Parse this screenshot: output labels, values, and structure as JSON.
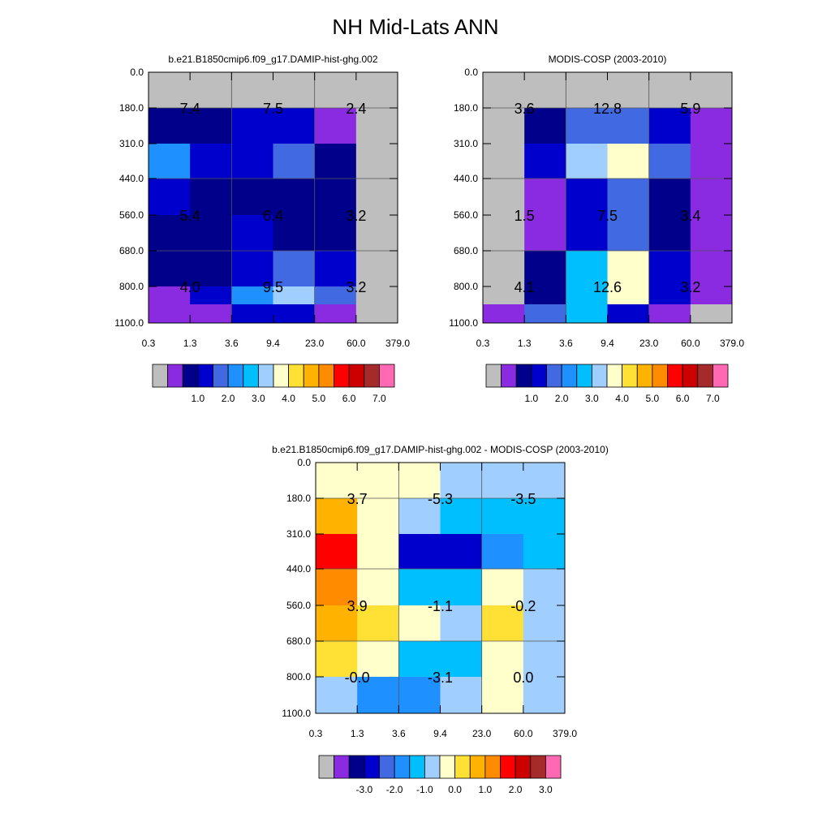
{
  "page_title": "NH Mid-Lats ANN",
  "colors": {
    "missing": "#bebebe",
    "frame": "#000000",
    "grid": "#555555"
  },
  "chart_data": [
    {
      "id": "model",
      "type": "heatmap",
      "title": "b.e21.B1850cmip6.f09_g17.DAMIP-hist-ghg.002",
      "x_ticks": [
        "0.3",
        "1.3",
        "3.6",
        "9.4",
        "23.0",
        "60.0",
        "379.0"
      ],
      "y_ticks": [
        "0.0",
        "180.0",
        "310.0",
        "440.0",
        "560.0",
        "680.0",
        "800.0",
        "1100.0"
      ],
      "xlabel": "",
      "ylabel": "",
      "cells": [
        [
          "missing",
          "missing",
          "missing",
          "missing",
          "missing",
          "missing"
        ],
        [
          "#00008b",
          "#00008b",
          "#0000cd",
          "#0000cd",
          "#8a2be2",
          "missing"
        ],
        [
          "#1e90ff",
          "#0000cd",
          "#0000cd",
          "#4169e1",
          "#00008b",
          "missing"
        ],
        [
          "#0000cd",
          "#00008b",
          "#00008b",
          "#00008b",
          "#00008b",
          "missing"
        ],
        [
          "#00008b",
          "#00008b",
          "#0000cd",
          "#00008b",
          "#00008b",
          "missing"
        ],
        [
          "#00008b",
          "#00008b",
          "#0000cd",
          "#4169e1",
          "#0000cd",
          "missing"
        ],
        [
          "#8a2be2",
          "#0000cd",
          "#1e90ff",
          "#a0cfff",
          "#4169e1",
          "missing"
        ],
        [
          "#8a2be2",
          "#8a2be2",
          "#0000cd",
          "#0000cd",
          "#8a2be2",
          "missing"
        ]
      ],
      "annotations": [
        {
          "x_block": 0,
          "y_block": 0,
          "text": "7.4"
        },
        {
          "x_block": 1,
          "y_block": 0,
          "text": "7.5"
        },
        {
          "x_block": 2,
          "y_block": 0,
          "text": "2.4"
        },
        {
          "x_block": 0,
          "y_block": 1,
          "text": "5.4"
        },
        {
          "x_block": 1,
          "y_block": 1,
          "text": "6.4"
        },
        {
          "x_block": 2,
          "y_block": 1,
          "text": "3.2"
        },
        {
          "x_block": 0,
          "y_block": 2,
          "text": "4.0"
        },
        {
          "x_block": 1,
          "y_block": 2,
          "text": "9.5"
        },
        {
          "x_block": 2,
          "y_block": 2,
          "text": "3.2"
        }
      ],
      "colorbar": {
        "colors": [
          "#bebebe",
          "#8a2be2",
          "#00008b",
          "#0000cd",
          "#4169e1",
          "#1e90ff",
          "#00bfff",
          "#a0cfff",
          "#ffffcc",
          "#ffe135",
          "#ffb300",
          "#ff8c00",
          "#ff0000",
          "#cd0000",
          "#a52a2a",
          "#ff69b4"
        ],
        "labels": [
          "1.0",
          "2.0",
          "3.0",
          "4.0",
          "5.0",
          "6.0",
          "7.0"
        ],
        "label_start_boundary": 2
      }
    },
    {
      "id": "obs",
      "type": "heatmap",
      "title": "MODIS-COSP (2003-2010)",
      "x_ticks": [
        "0.3",
        "1.3",
        "3.6",
        "9.4",
        "23.0",
        "60.0",
        "379.0"
      ],
      "y_ticks": [
        "0.0",
        "180.0",
        "310.0",
        "440.0",
        "560.0",
        "680.0",
        "800.0",
        "1100.0"
      ],
      "xlabel": "",
      "ylabel": "",
      "cells": [
        [
          "missing",
          "missing",
          "missing",
          "missing",
          "missing",
          "missing"
        ],
        [
          "missing",
          "#00008b",
          "#4169e1",
          "#4169e1",
          "#0000cd",
          "#8a2be2"
        ],
        [
          "missing",
          "#0000cd",
          "#a0cfff",
          "#ffffcc",
          "#4169e1",
          "#8a2be2"
        ],
        [
          "missing",
          "#8a2be2",
          "#0000cd",
          "#4169e1",
          "#00008b",
          "#8a2be2"
        ],
        [
          "missing",
          "#8a2be2",
          "#0000cd",
          "#4169e1",
          "#00008b",
          "#8a2be2"
        ],
        [
          "missing",
          "#00008b",
          "#00bfff",
          "#ffffcc",
          "#0000cd",
          "#8a2be2"
        ],
        [
          "missing",
          "#00008b",
          "#00bfff",
          "#ffffcc",
          "#0000cd",
          "#8a2be2"
        ],
        [
          "#8a2be2",
          "#4169e1",
          "#00bfff",
          "#0000cd",
          "#8a2be2",
          "missing"
        ]
      ],
      "annotations": [
        {
          "x_block": 0,
          "y_block": 0,
          "text": "3.6"
        },
        {
          "x_block": 1,
          "y_block": 0,
          "text": "12.8"
        },
        {
          "x_block": 2,
          "y_block": 0,
          "text": "5.9"
        },
        {
          "x_block": 0,
          "y_block": 1,
          "text": "1.5"
        },
        {
          "x_block": 1,
          "y_block": 1,
          "text": "7.5"
        },
        {
          "x_block": 2,
          "y_block": 1,
          "text": "3.4"
        },
        {
          "x_block": 0,
          "y_block": 2,
          "text": "4.1"
        },
        {
          "x_block": 1,
          "y_block": 2,
          "text": "12.6"
        },
        {
          "x_block": 2,
          "y_block": 2,
          "text": "3.2"
        }
      ],
      "colorbar": {
        "colors": [
          "#bebebe",
          "#8a2be2",
          "#00008b",
          "#0000cd",
          "#4169e1",
          "#1e90ff",
          "#00bfff",
          "#a0cfff",
          "#ffffcc",
          "#ffe135",
          "#ffb300",
          "#ff8c00",
          "#ff0000",
          "#cd0000",
          "#a52a2a",
          "#ff69b4"
        ],
        "labels": [
          "1.0",
          "2.0",
          "3.0",
          "4.0",
          "5.0",
          "6.0",
          "7.0"
        ],
        "label_start_boundary": 2
      }
    },
    {
      "id": "diff",
      "type": "heatmap",
      "title": "b.e21.B1850cmip6.f09_g17.DAMIP-hist-ghg.002 - MODIS-COSP (2003-2010)",
      "x_ticks": [
        "0.3",
        "1.3",
        "3.6",
        "9.4",
        "23.0",
        "60.0",
        "379.0"
      ],
      "y_ticks": [
        "0.0",
        "180.0",
        "310.0",
        "440.0",
        "560.0",
        "680.0",
        "800.0",
        "1100.0"
      ],
      "xlabel": "",
      "ylabel": "",
      "cells": [
        [
          "#ffffcc",
          "#ffffcc",
          "#ffffcc",
          "#a0cfff",
          "#a0cfff",
          "#a0cfff"
        ],
        [
          "#ffb300",
          "#ffffcc",
          "#a0cfff",
          "#00bfff",
          "#00bfff",
          "#00bfff"
        ],
        [
          "#ff0000",
          "#ffffcc",
          "#0000cd",
          "#0000cd",
          "#1e90ff",
          "#00bfff"
        ],
        [
          "#ff8c00",
          "#ffffcc",
          "#00bfff",
          "#00bfff",
          "#ffffcc",
          "#a0cfff"
        ],
        [
          "#ffb300",
          "#ffe135",
          "#ffffcc",
          "#a0cfff",
          "#ffe135",
          "#a0cfff"
        ],
        [
          "#ffe135",
          "#ffffcc",
          "#00bfff",
          "#00bfff",
          "#ffffcc",
          "#a0cfff"
        ],
        [
          "#a0cfff",
          "#1e90ff",
          "#1e90ff",
          "#a0cfff",
          "#ffffcc",
          "#a0cfff"
        ],
        [
          "#a0cfff",
          "#1e90ff",
          "#1e90ff",
          "#a0cfff",
          "#ffffcc",
          "#a0cfff"
        ]
      ],
      "annotations": [
        {
          "x_block": 0,
          "y_block": 0,
          "text": "3.7"
        },
        {
          "x_block": 1,
          "y_block": 0,
          "text": "-5.3"
        },
        {
          "x_block": 2,
          "y_block": 0,
          "text": "-3.5"
        },
        {
          "x_block": 0,
          "y_block": 1,
          "text": "3.9"
        },
        {
          "x_block": 1,
          "y_block": 1,
          "text": "-1.1"
        },
        {
          "x_block": 2,
          "y_block": 1,
          "text": "-0.2"
        },
        {
          "x_block": 0,
          "y_block": 2,
          "text": "-0.0"
        },
        {
          "x_block": 1,
          "y_block": 2,
          "text": "-3.1"
        },
        {
          "x_block": 2,
          "y_block": 2,
          "text": "0.0"
        }
      ],
      "colorbar": {
        "colors": [
          "#bebebe",
          "#8a2be2",
          "#00008b",
          "#0000cd",
          "#4169e1",
          "#1e90ff",
          "#00bfff",
          "#a0cfff",
          "#ffffcc",
          "#ffe135",
          "#ffb300",
          "#ff8c00",
          "#ff0000",
          "#cd0000",
          "#a52a2a",
          "#ff69b4"
        ],
        "labels": [
          "-3.0",
          "-2.0",
          "-1.0",
          "0.0",
          "1.0",
          "2.0",
          "3.0"
        ],
        "label_start_boundary": 2
      }
    }
  ]
}
